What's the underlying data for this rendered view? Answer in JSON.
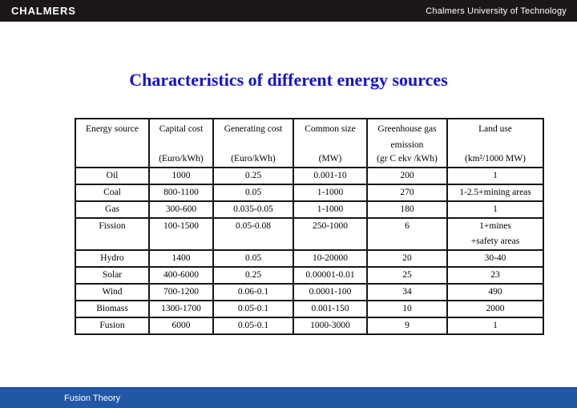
{
  "header_bar": {
    "logo": "CHALMERS",
    "right_text": "Chalmers University of Technology"
  },
  "title": "Characteristics of different energy sources",
  "table": {
    "columns": [
      {
        "title": "Energy source",
        "unit": ""
      },
      {
        "title": "Capital cost",
        "unit": "(Euro/kWh)"
      },
      {
        "title": "Generating cost",
        "unit": "(Euro/kWh)"
      },
      {
        "title": "Common size",
        "unit": "(MW)"
      },
      {
        "title": "Greenhouse gas\nemission",
        "unit": "(gr C ekv /kWh)"
      },
      {
        "title": "Land use",
        "unit": "(km²/1000 MW)"
      }
    ],
    "rows": [
      {
        "cells": [
          "Oil",
          "1000",
          "0.25",
          "0.001-10",
          "200",
          "1"
        ]
      },
      {
        "cells": [
          "Coal",
          "800-1100",
          "0.05",
          "1-1000",
          "270",
          "1-2.5+mining areas"
        ]
      },
      {
        "cells": [
          "Gas",
          "300-600",
          "0.035-0.05",
          "1-1000",
          "180",
          "1"
        ]
      },
      {
        "cells": [
          "Fission",
          "100-1500",
          "0.05-0.08",
          "250-1000",
          "6",
          "1+mines\n+safety areas"
        ]
      },
      {
        "cells": [
          "Hydro",
          "1400",
          "0.05",
          "10-20000",
          "20",
          "30-40"
        ]
      },
      {
        "cells": [
          "Solar",
          "400-6000",
          "0.25",
          "0.00001-0.01",
          "25",
          "23"
        ]
      },
      {
        "cells": [
          "Wind",
          "700-1200",
          "0.06-0.1",
          "0.0001-100",
          "34",
          "490"
        ]
      },
      {
        "cells": [
          "Biomass",
          "1300-1700",
          "0.05-0.1",
          "0.001-150",
          "10",
          "2000"
        ]
      },
      {
        "cells": [
          "Fusion",
          "6000",
          "0.05-0.1",
          "1000-3000",
          "9",
          "1"
        ]
      }
    ]
  },
  "footer_bar": {
    "label": "Fusion Theory"
  },
  "colors": {
    "top_bar": "#1b1718",
    "title": "#1512d0",
    "footer_bar": "#2257a6",
    "table_border": "#161616"
  }
}
